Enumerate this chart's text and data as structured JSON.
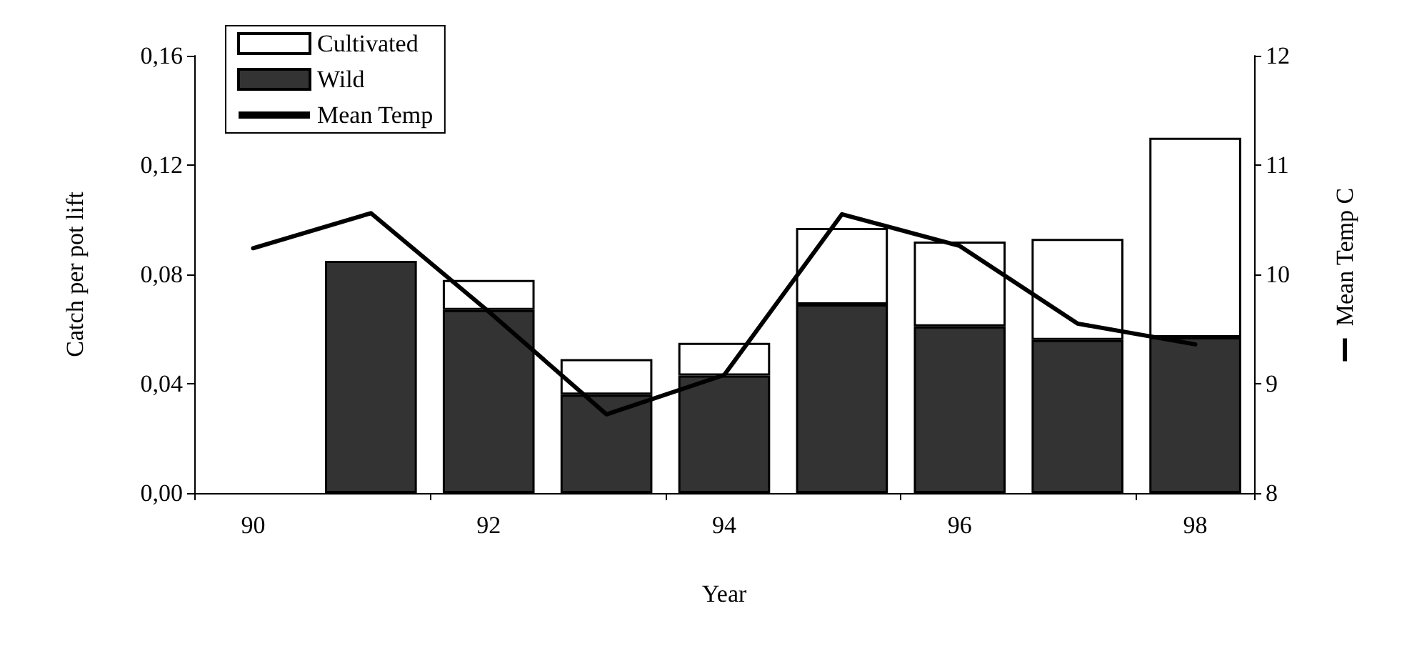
{
  "chart_data": {
    "type": "bar",
    "stacked": true,
    "xlabel": "Year",
    "ylabel": "Catch per pot lift",
    "y2label": "Mean Temp C",
    "categories": [
      "90",
      null,
      "92",
      null,
      "94",
      null,
      "96",
      null,
      "98"
    ],
    "series": [
      {
        "name": "Wild",
        "color": "#333333",
        "values": [
          null,
          0.085,
          0.067,
          0.036,
          0.043,
          0.069,
          0.061,
          0.056,
          0.057
        ]
      },
      {
        "name": "Cultivated",
        "color": "#ffffff",
        "values": [
          null,
          null,
          0.011,
          0.013,
          0.012,
          0.028,
          0.031,
          0.037,
          0.073
        ]
      },
      {
        "name": "Mean Temp",
        "type": "line",
        "axis": "y2",
        "color": "#000000",
        "values": [
          10.24,
          10.56,
          9.66,
          8.72,
          9.08,
          10.55,
          10.26,
          9.55,
          9.36
        ]
      }
    ],
    "ylim": [
      0,
      0.16
    ],
    "yticks": [
      {
        "value": 0,
        "label": "0,00"
      },
      {
        "value": 0.04,
        "label": "0,04"
      },
      {
        "value": 0.08,
        "label": "0,08"
      },
      {
        "value": 0.12,
        "label": "0,12"
      },
      {
        "value": 0.16,
        "label": "0,16"
      }
    ],
    "y2lim": [
      8,
      12
    ],
    "y2ticks": [
      8,
      9,
      10,
      11,
      12
    ],
    "grid": false,
    "legend": "top left",
    "marker": "none",
    "line_style": "solid"
  }
}
